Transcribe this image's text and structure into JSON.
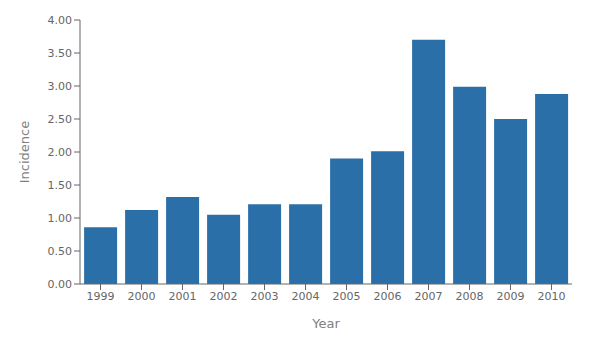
{
  "chart_data": {
    "type": "bar",
    "xlabel": "Year",
    "ylabel": "Incidence",
    "categories": [
      "1999",
      "2000",
      "2001",
      "2002",
      "2003",
      "2004",
      "2005",
      "2006",
      "2007",
      "2008",
      "2009",
      "2010"
    ],
    "values": [
      0.86,
      1.12,
      1.32,
      1.05,
      1.21,
      1.21,
      1.9,
      2.01,
      3.7,
      2.99,
      2.5,
      2.88
    ],
    "color": "#2b6fa8",
    "ylim": [
      0.0,
      4.0
    ],
    "yticks": [
      {
        "value": 0.0,
        "label": "0.00"
      },
      {
        "value": 0.5,
        "label": "0.50"
      },
      {
        "value": 1.0,
        "label": "1.00"
      },
      {
        "value": 1.5,
        "label": "1.50"
      },
      {
        "value": 2.0,
        "label": "2.00"
      },
      {
        "value": 2.5,
        "label": "2.50"
      },
      {
        "value": 3.0,
        "label": "3.00"
      },
      {
        "value": 3.5,
        "label": "3.50"
      },
      {
        "value": 4.0,
        "label": "4.00"
      }
    ],
    "grid": false
  }
}
